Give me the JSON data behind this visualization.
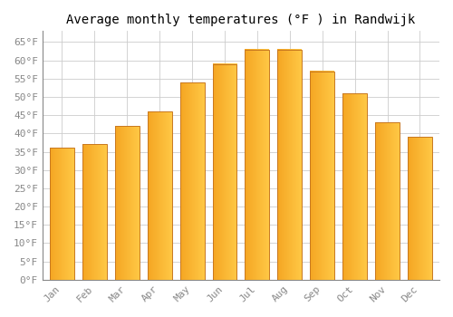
{
  "title": "Average monthly temperatures (°F ) in Randwijk",
  "months": [
    "Jan",
    "Feb",
    "Mar",
    "Apr",
    "May",
    "Jun",
    "Jul",
    "Aug",
    "Sep",
    "Oct",
    "Nov",
    "Dec"
  ],
  "values": [
    36,
    37,
    42,
    46,
    54,
    59,
    63,
    63,
    57,
    51,
    43,
    39
  ],
  "bar_color_left": "#F5A623",
  "bar_color_right": "#FFC845",
  "bar_edge_color": "#C87820",
  "ylim": [
    0,
    68
  ],
  "yticks": [
    0,
    5,
    10,
    15,
    20,
    25,
    30,
    35,
    40,
    45,
    50,
    55,
    60,
    65
  ],
  "background_color": "#FFFFFF",
  "grid_color": "#CCCCCC",
  "title_fontsize": 10,
  "tick_fontsize": 8,
  "font_family": "monospace",
  "bar_width": 0.75
}
